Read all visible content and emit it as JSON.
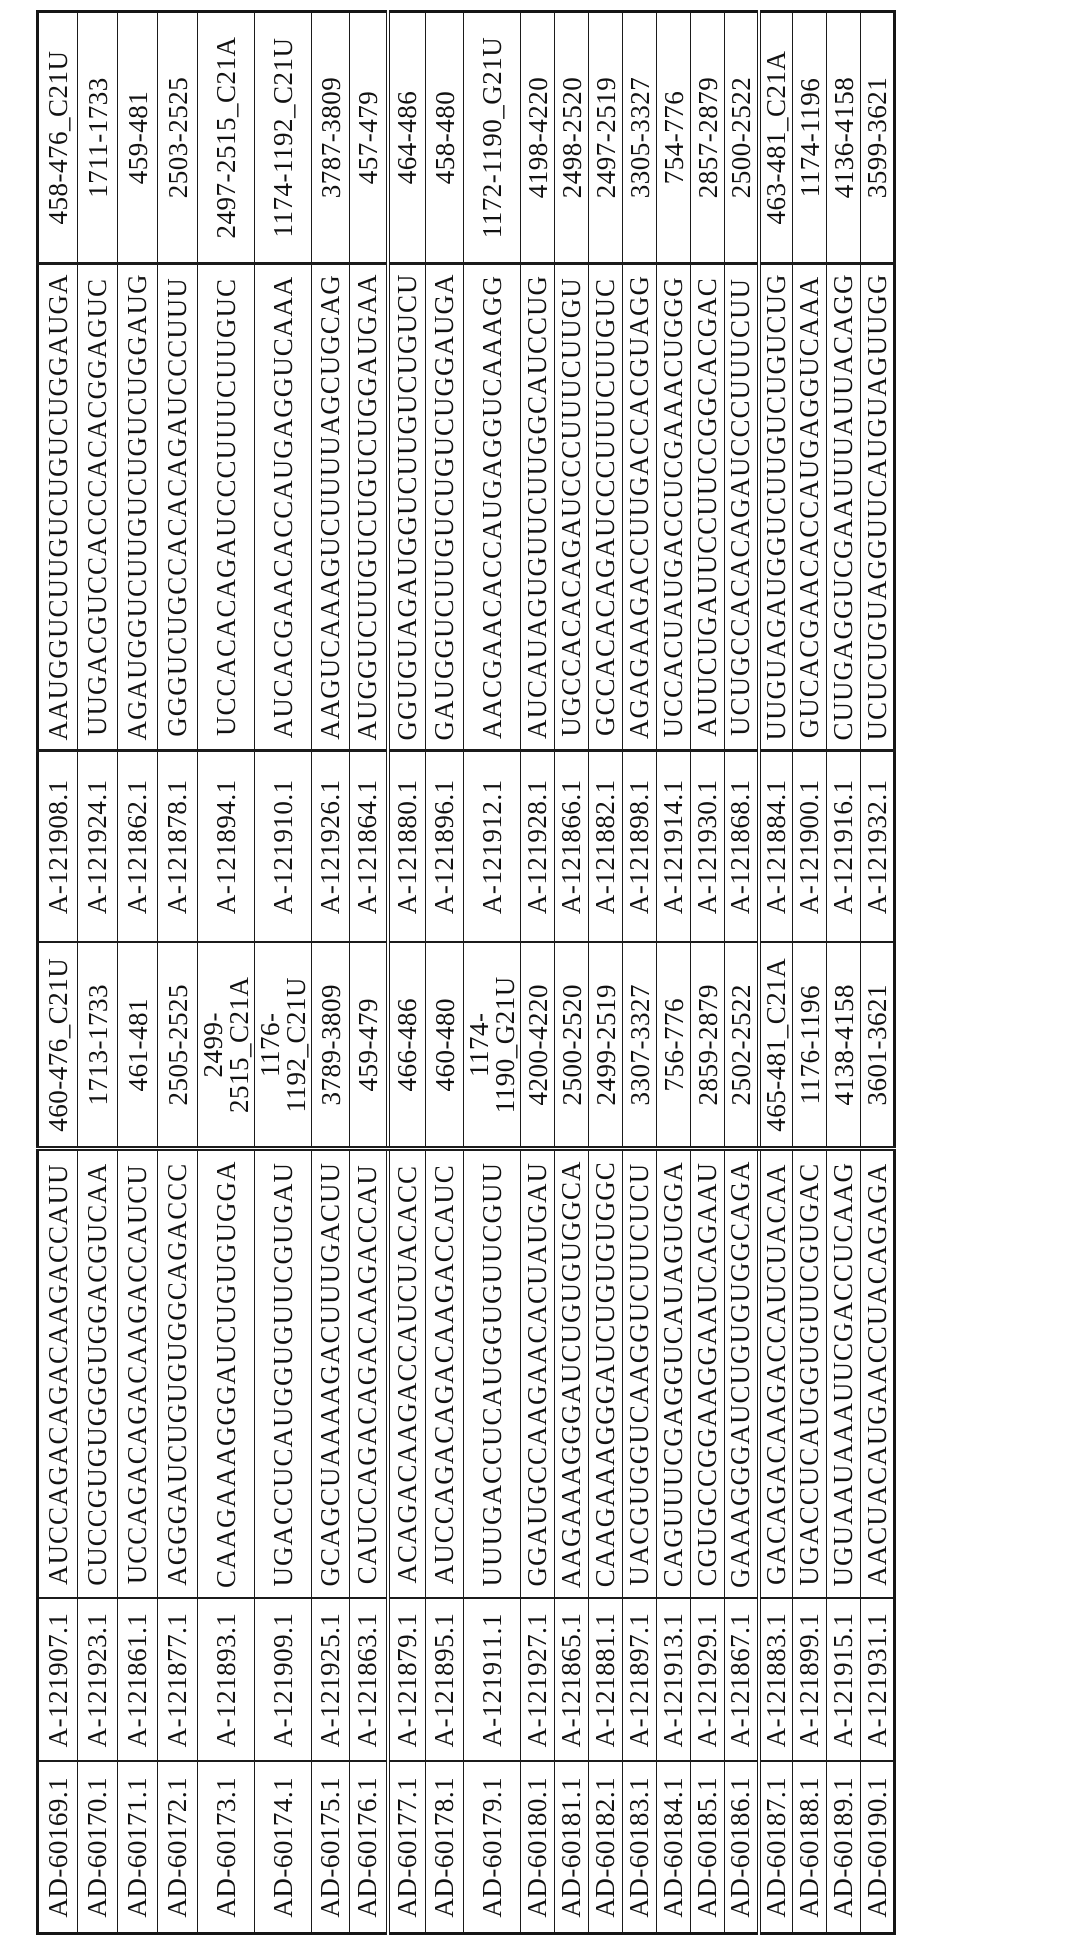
{
  "page": {
    "background_color": "#ffffff",
    "ink_color": "#121212",
    "content_kind": "rotated patent siRNA sequence table"
  },
  "table": {
    "orientation": "rotated 90 degrees counterclockwise, text reads bottom-to-top",
    "column_keys": [
      "duplex",
      "sense_name",
      "sense_seq",
      "sense_range",
      "antisense_name",
      "antisense_seq",
      "antisense_range"
    ],
    "rows": [
      {
        "duplex": "AD-60169.1",
        "sense_name": "A-121907.1",
        "sense_seq": "AUCCAGACAGACAAGACCAUU",
        "sense_range": "460-476_C21U",
        "antisense_name": "A-121908.1",
        "antisense_seq": "AAUGGUCUUGUCUGUCUGGAUGA",
        "antisense_range": "458-476_C21U"
      },
      {
        "duplex": "AD-60170.1",
        "sense_name": "A-121923.1",
        "sense_seq": "CUCCGUGUGGGUGGACGUCAA",
        "sense_range": "1713-1733",
        "antisense_name": "A-121924.1",
        "antisense_seq": "UUGACGUCCACCCACACGGAGUC",
        "antisense_range": "1711-1733"
      },
      {
        "duplex": "AD-60171.1",
        "sense_name": "A-121861.1",
        "sense_seq": "UCCAGACAGACAAGACCAUCU",
        "sense_range": "461-481",
        "antisense_name": "A-121862.1",
        "antisense_seq": "AGAUGGUCUUGUCUGUCUGGAUG",
        "antisense_range": "459-481"
      },
      {
        "duplex": "AD-60172.1",
        "sense_name": "A-121877.1",
        "sense_seq": "AGGGAUCUGUGUGGCAGACCC",
        "sense_range": "2505-2525",
        "antisense_name": "A-121878.1",
        "antisense_seq": "GGGUCUGCCACACAGAUCCCUUU",
        "antisense_range": "2503-2525"
      },
      {
        "duplex": "AD-60173.1",
        "sense_name": "A-121893.1",
        "sense_seq": "CAAGAAAGGGAUCUGUGUGGA",
        "sense_range": "2499-\n2515_C21A",
        "antisense_name": "A-121894.1",
        "antisense_seq": "UCCACACAGAUCCCUUUCUUGUC",
        "antisense_range": "2497-2515_C21A"
      },
      {
        "duplex": "AD-60174.1",
        "sense_name": "A-121909.1",
        "sense_seq": "UGACCUCAUGGUGUUCGUGAU",
        "sense_range": "1176-\n1192_C21U",
        "antisense_name": "A-121910.1",
        "antisense_seq": "AUCACGAACACCAUGAGGUCAAA",
        "antisense_range": "1174-1192_C21U"
      },
      {
        "duplex": "AD-60175.1",
        "sense_name": "A-121925.1",
        "sense_seq": "GCAGCUAAAAGACUUUGACUU",
        "sense_range": "3789-3809",
        "antisense_name": "A-121926.1",
        "antisense_seq": "AAGUCAAAGUCUUUUAGCUGCAG",
        "antisense_range": "3787-3809"
      },
      {
        "duplex": "AD-60176.1",
        "sense_name": "A-121863.1",
        "sense_seq": "CAUCCAGACAGACAAGACCAU",
        "sense_range": "459-479",
        "antisense_name": "A-121864.1",
        "antisense_seq": "AUGGUCUUGUCUGUCUGGAUGAA",
        "antisense_range": "457-479"
      },
      {
        "duplex": "AD-60177.1",
        "sense_name": "A-121879.1",
        "sense_seq": "ACAGACAAGACCAUCUACACC",
        "sense_range": "466-486",
        "antisense_name": "A-121880.1",
        "antisense_seq": "GGUGUAGAUGGUCUUGUCUGUCU",
        "antisense_range": "464-486"
      },
      {
        "duplex": "AD-60178.1",
        "sense_name": "A-121895.1",
        "sense_seq": "AUCCAGACAGACAAGACCAUC",
        "sense_range": "460-480",
        "antisense_name": "A-121896.1",
        "antisense_seq": "GAUGGUCUUGUCUGUCUGGAUGA",
        "antisense_range": "458-480"
      },
      {
        "duplex": "AD-60179.1",
        "sense_name": "A-121911.1",
        "sense_seq": "UUUGACCUCAUGGUGUUCGUU",
        "sense_range": "1174-\n1190_G21U",
        "antisense_name": "A-121912.1",
        "antisense_seq": "AACGAACACCAUGAGGUCAAAGG",
        "antisense_range": "1172-1190_G21U"
      },
      {
        "duplex": "AD-60180.1",
        "sense_name": "A-121927.1",
        "sense_seq": "GGAUGCCAAGAACACUAUGAU",
        "sense_range": "4200-4220",
        "antisense_name": "A-121928.1",
        "antisense_seq": "AUCAUAGUGUUCUUGGCAUCCUG",
        "antisense_range": "4198-4220"
      },
      {
        "duplex": "AD-60181.1",
        "sense_name": "A-121865.1",
        "sense_seq": "AAGAAAGGGAUCUGUGUGGCA",
        "sense_range": "2500-2520",
        "antisense_name": "A-121866.1",
        "antisense_seq": "UGCCACACAGAUCCCUUUCUUGU",
        "antisense_range": "2498-2520"
      },
      {
        "duplex": "AD-60182.1",
        "sense_name": "A-121881.1",
        "sense_seq": "CAAGAAAGGGAUCUGUGUGGC",
        "sense_range": "2499-2519",
        "antisense_name": "A-121882.1",
        "antisense_seq": "GCCACACAGAUCCCUUUCUUGUC",
        "antisense_range": "2497-2519"
      },
      {
        "duplex": "AD-60183.1",
        "sense_name": "A-121897.1",
        "sense_seq": "UACGUGGUCAAGGUCUUCUCU",
        "sense_range": "3307-3327",
        "antisense_name": "A-121898.1",
        "antisense_seq": "AGAGAAGACCUUGACCACGUAGG",
        "antisense_range": "3305-3327"
      },
      {
        "duplex": "AD-60184.1",
        "sense_name": "A-121913.1",
        "sense_seq": "CAGUUUCGAGGUCAUAGUGGA",
        "sense_range": "756-776",
        "antisense_name": "A-121914.1",
        "antisense_seq": "UCCACUAUGACCUCGAAACUGGG",
        "antisense_range": "754-776"
      },
      {
        "duplex": "AD-60185.1",
        "sense_name": "A-121929.1",
        "sense_seq": "CGUGCCGGAAGGAAUCAGAAU",
        "sense_range": "2859-2879",
        "antisense_name": "A-121930.1",
        "antisense_seq": "AUUCUGAUUCCUUCCGGCACGAC",
        "antisense_range": "2857-2879"
      },
      {
        "duplex": "AD-60186.1",
        "sense_name": "A-121867.1",
        "sense_seq": "GAAAGGGAUCUGUGUGGCAGA",
        "sense_range": "2502-2522",
        "antisense_name": "A-121868.1",
        "antisense_seq": "UCUGCCACACAGAUCCCUUUCUU",
        "antisense_range": "2500-2522"
      },
      {
        "duplex": "AD-60187.1",
        "sense_name": "A-121883.1",
        "sense_seq": "GACAGACAAGACCAUCUACAA",
        "sense_range": "465-481_C21A",
        "antisense_name": "A-121884.1",
        "antisense_seq": "UUGUAGAUGGUCUUGUCUGUCUG",
        "antisense_range": "463-481_C21A"
      },
      {
        "duplex": "AD-60188.1",
        "sense_name": "A-121899.1",
        "sense_seq": "UGACCUCAUGGUGUUCGUGAC",
        "sense_range": "1176-1196",
        "antisense_name": "A-121900.1",
        "antisense_seq": "GUCACGAACACCAUGAGGUCAAA",
        "antisense_range": "1174-1196"
      },
      {
        "duplex": "AD-60189.1",
        "sense_name": "A-121915.1",
        "sense_seq": "UGUAAUAAAUUCGACCUCAAG",
        "sense_range": "4138-4158",
        "antisense_name": "A-121916.1",
        "antisense_seq": "CUUGAGGUCGAAUUUAUUACAGG",
        "antisense_range": "4136-4158"
      },
      {
        "duplex": "AD-60190.1",
        "sense_name": "A-121931.1",
        "sense_seq": "AACUACAUGAACCUACAGAGA",
        "sense_range": "3601-3621",
        "antisense_name": "A-121932.1",
        "antisense_seq": "UCUCUGUAGGUUCAUGUAGUUGG",
        "antisense_range": "3599-3621"
      }
    ]
  }
}
